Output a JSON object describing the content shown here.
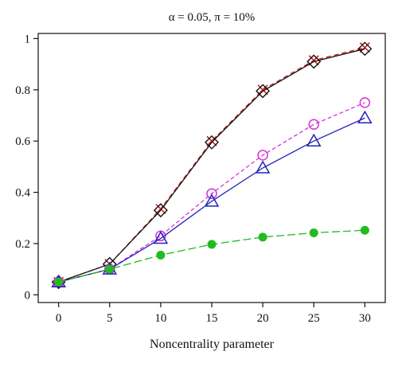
{
  "chart_data": {
    "type": "line",
    "title": "α = 0.05, π = 10%",
    "xlabel": "Noncentrality parameter",
    "ylabel": "",
    "x": [
      0,
      5,
      10,
      15,
      20,
      25,
      30
    ],
    "xlim": [
      -2,
      32
    ],
    "ylim": [
      -0.03,
      1.02
    ],
    "xticks": [
      0,
      5,
      10,
      15,
      20,
      25,
      30
    ],
    "yticks": [
      0,
      0.2,
      0.4,
      0.6,
      0.8,
      1
    ],
    "ytick_labels": [
      "0",
      "0.2",
      "0.4",
      "0.6",
      "0.8",
      "1"
    ],
    "grid": false,
    "series": [
      {
        "values": [
          0.05,
          0.12,
          0.335,
          0.6,
          0.8,
          0.915,
          0.965
        ],
        "color": "#d11a1a",
        "dash": "6,4",
        "marker": "x"
      },
      {
        "values": [
          0.05,
          0.12,
          0.33,
          0.595,
          0.795,
          0.91,
          0.96
        ],
        "color": "#111111",
        "dash": "",
        "marker": "diamond"
      },
      {
        "values": [
          0.05,
          0.1,
          0.23,
          0.395,
          0.545,
          0.665,
          0.75
        ],
        "color": "#d633d6",
        "dash": "5,3",
        "marker": "circle-open"
      },
      {
        "values": [
          0.05,
          0.1,
          0.22,
          0.365,
          0.495,
          0.6,
          0.69
        ],
        "color": "#2222bb",
        "dash": "",
        "marker": "triangle-open"
      },
      {
        "values": [
          0.05,
          0.1,
          0.155,
          0.197,
          0.225,
          0.242,
          0.252
        ],
        "color": "#22bb22",
        "dash": "10,4",
        "marker": "circle-filled"
      }
    ]
  }
}
